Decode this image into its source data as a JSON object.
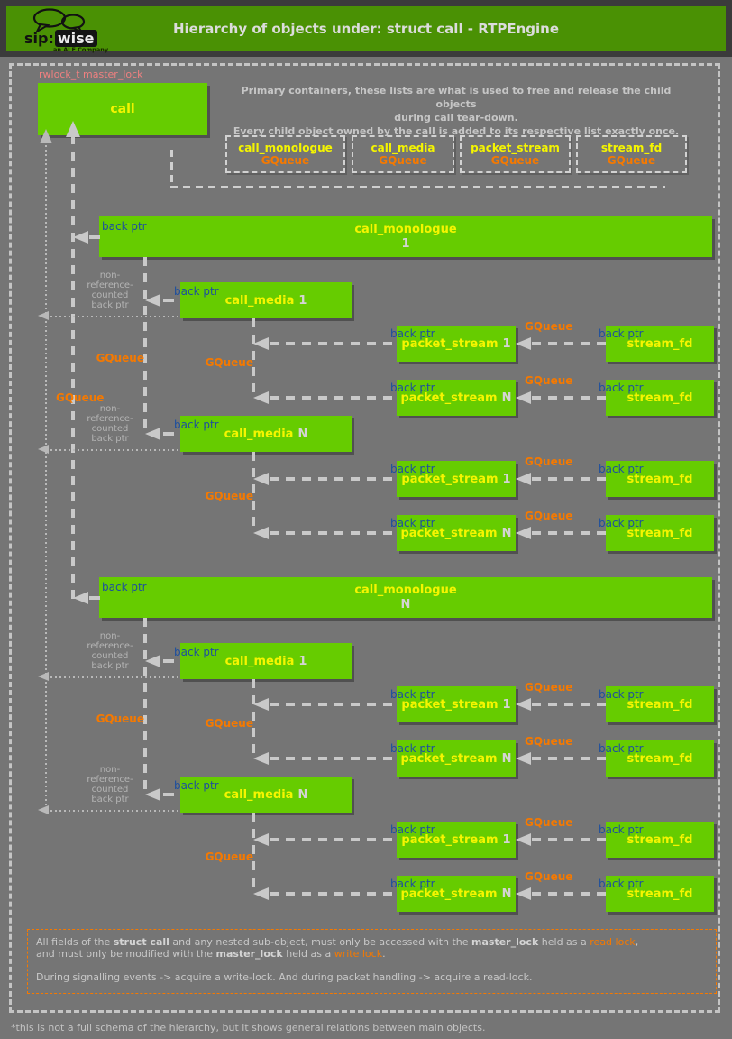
{
  "header": {
    "logo": {
      "sip": "sip:",
      "wise": "wise",
      "tagline": "an ALE Company"
    },
    "title": "Hierarchy of objects under: struct call - RTPEngine"
  },
  "diagram": {
    "master_lock_label": "rwlock_t master_lock",
    "call_box_label": "call",
    "primary_note": [
      "Primary containers, these lists are what is used to free and release the child objects",
      "during call tear-down.",
      "Every child object owned by the call is added to its respective list exactly once."
    ],
    "queue_boxes": [
      {
        "name": "call_monologue",
        "type": "GQueue"
      },
      {
        "name": "call_media",
        "type": "GQueue"
      },
      {
        "name": "packet_stream",
        "type": "GQueue"
      },
      {
        "name": "stream_fd",
        "type": "GQueue"
      }
    ],
    "labels": {
      "back_ptr": "back ptr",
      "gqueue": "GQueue",
      "non_ref_lines": "non-\nreference-\ncounted\nback ptr"
    },
    "object_labels": {
      "monologue": "call_monologue",
      "media": "call_media",
      "packet": "packet_stream",
      "stream": "stream_fd"
    },
    "groups": [
      {
        "monologue_index": "1",
        "medias": [
          {
            "index": "1",
            "packets": [
              "1",
              "N"
            ]
          },
          {
            "index": "N",
            "packets": [
              "1",
              "N"
            ]
          }
        ]
      },
      {
        "monologue_index": "N",
        "medias": [
          {
            "index": "1",
            "packets": [
              "1",
              "N"
            ]
          },
          {
            "index": "N",
            "packets": [
              "1",
              "N"
            ]
          }
        ]
      }
    ]
  },
  "note_box": {
    "lines": [
      [
        {
          "t": "All fields of the ",
          "s": "p"
        },
        {
          "t": "struct call",
          "s": "b"
        },
        {
          "t": " and any nested sub-object, must only be accessed with the ",
          "s": "p"
        },
        {
          "t": "master_lock",
          "s": "b"
        },
        {
          "t": " held as a ",
          "s": "p"
        },
        {
          "t": "read lock",
          "s": "o"
        },
        {
          "t": ",",
          "s": "p"
        }
      ],
      [
        {
          "t": "and must only be modified with the ",
          "s": "p"
        },
        {
          "t": "master_lock",
          "s": "b"
        },
        {
          "t": " held as a ",
          "s": "p"
        },
        {
          "t": "write lock",
          "s": "o"
        },
        {
          "t": ".",
          "s": "p"
        }
      ],
      [],
      [
        {
          "t": "During signalling events -> acquire a write-lock. And during packet handling -> acquire a read-lock.",
          "s": "p"
        }
      ]
    ]
  },
  "footer": "*this is not a full schema of the hierarchy, but it shows general relations between main objects.",
  "colors": {
    "header_green": "#4a9104",
    "box_green": "#66cc00",
    "orange": "#f57900",
    "blue": "#1d4f9e",
    "yellow": "#f5f500",
    "salmon": "#f08080",
    "background": "#757575"
  }
}
